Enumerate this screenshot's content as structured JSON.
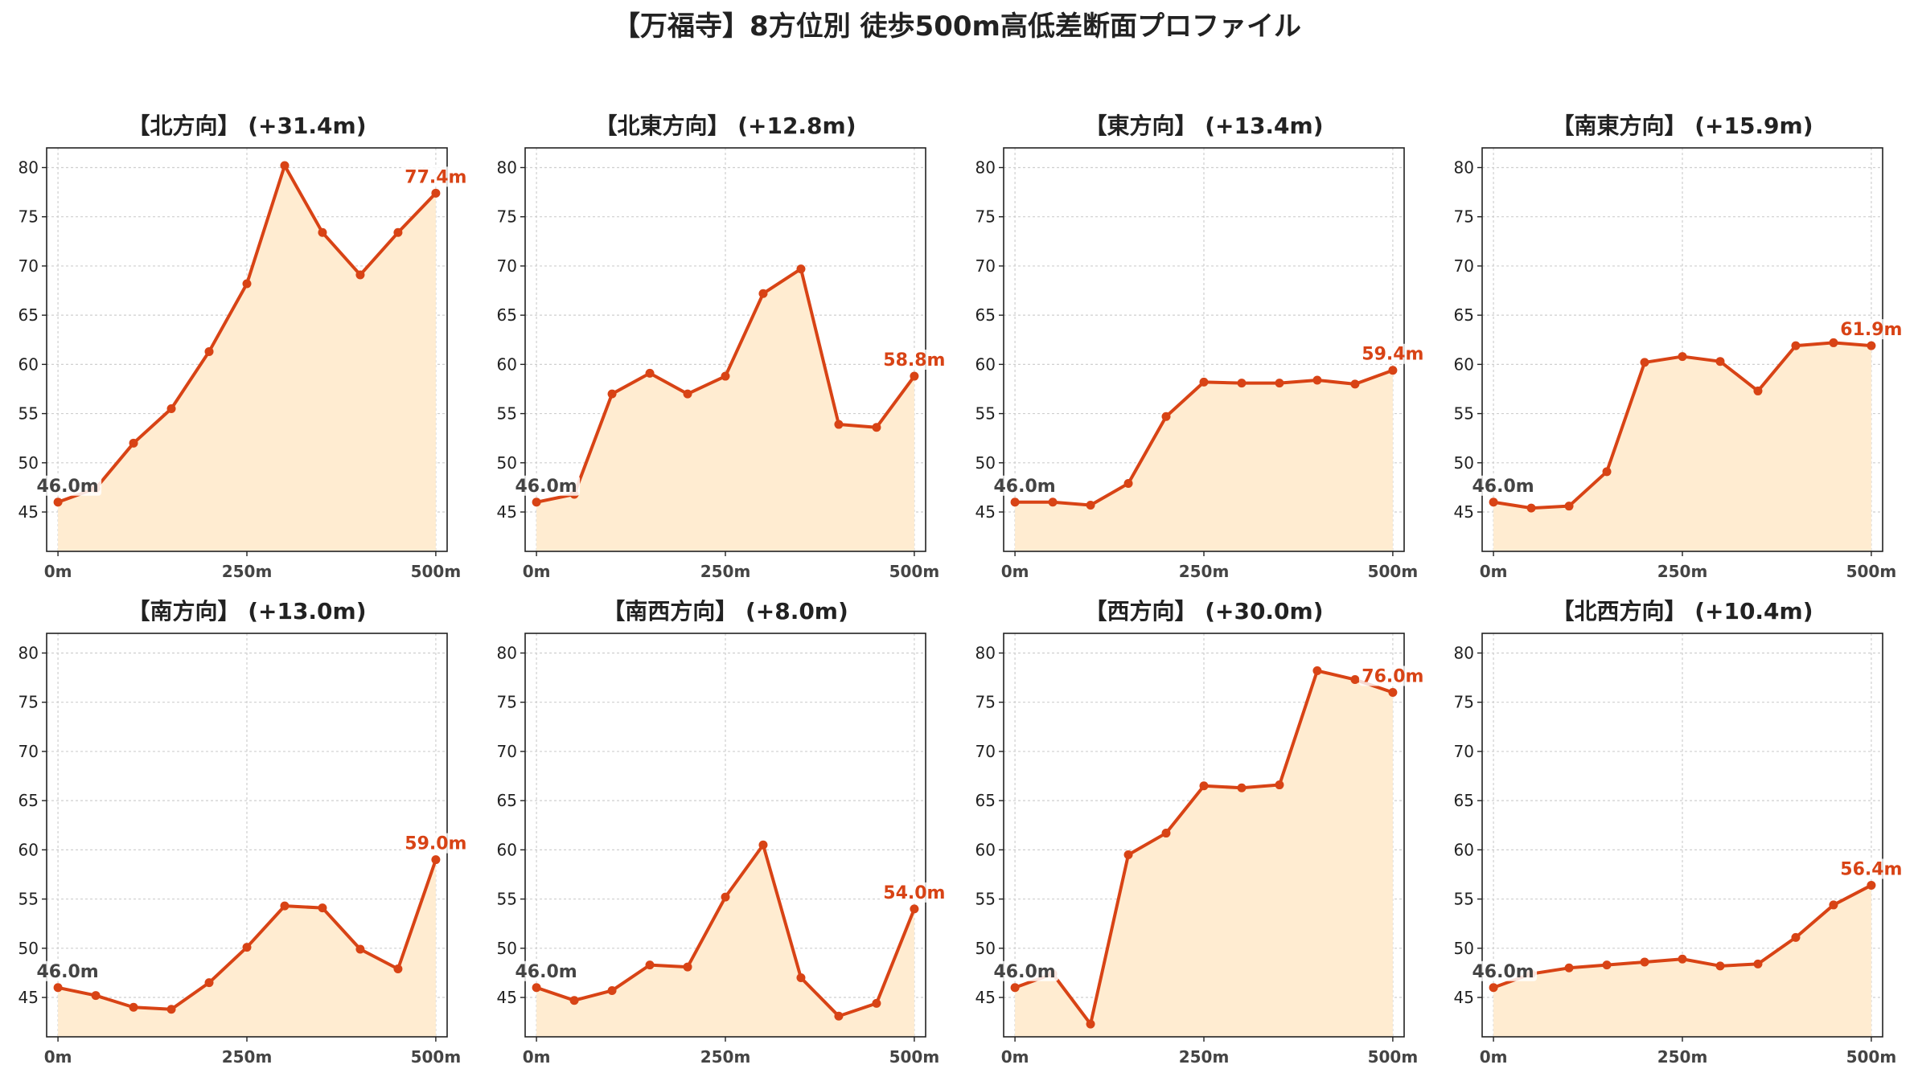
{
  "figure": {
    "title": "【万福寺】8方位別 徒歩500m高低差断面プロファイル"
  },
  "colors": {
    "line": "#d84315",
    "fill": "#ffecd1",
    "grid": "#cfcfcf",
    "start_label": "#444444",
    "end_label": "#d84315"
  },
  "chart_data": [
    {
      "type": "area",
      "title": "【北方向】 (+31.4m)",
      "x": [
        0,
        50,
        100,
        150,
        200,
        250,
        300,
        350,
        400,
        450,
        500
      ],
      "y": [
        46.0,
        47.4,
        52.0,
        55.5,
        61.3,
        68.2,
        80.2,
        73.4,
        69.1,
        73.4,
        77.4
      ],
      "start_label": "46.0m",
      "end_label": "77.4m",
      "ylim": [
        41,
        82
      ],
      "yticks": [
        45,
        50,
        55,
        60,
        65,
        70,
        75,
        80
      ],
      "xticks": [
        0,
        250,
        500
      ],
      "xtick_labels": [
        "0m",
        "250m",
        "500m"
      ],
      "grid": true
    },
    {
      "type": "area",
      "title": "【北東方向】 (+12.8m)",
      "x": [
        0,
        50,
        100,
        150,
        200,
        250,
        300,
        350,
        400,
        450,
        500
      ],
      "y": [
        46.0,
        46.8,
        57.0,
        59.1,
        57.0,
        58.8,
        67.2,
        69.7,
        53.9,
        53.6,
        58.8
      ],
      "start_label": "46.0m",
      "end_label": "58.8m",
      "ylim": [
        41,
        82
      ],
      "yticks": [
        45,
        50,
        55,
        60,
        65,
        70,
        75,
        80
      ],
      "xticks": [
        0,
        250,
        500
      ],
      "xtick_labels": [
        "0m",
        "250m",
        "500m"
      ],
      "grid": true
    },
    {
      "type": "area",
      "title": "【東方向】 (+13.4m)",
      "x": [
        0,
        50,
        100,
        150,
        200,
        250,
        300,
        350,
        400,
        450,
        500
      ],
      "y": [
        46.0,
        46.0,
        45.7,
        47.9,
        54.7,
        58.2,
        58.1,
        58.1,
        58.4,
        58.0,
        59.4
      ],
      "start_label": "46.0m",
      "end_label": "59.4m",
      "ylim": [
        41,
        82
      ],
      "yticks": [
        45,
        50,
        55,
        60,
        65,
        70,
        75,
        80
      ],
      "xticks": [
        0,
        250,
        500
      ],
      "xtick_labels": [
        "0m",
        "250m",
        "500m"
      ],
      "grid": true
    },
    {
      "type": "area",
      "title": "【南東方向】 (+15.9m)",
      "x": [
        0,
        50,
        100,
        150,
        200,
        250,
        300,
        350,
        400,
        450,
        500
      ],
      "y": [
        46.0,
        45.4,
        45.6,
        49.1,
        60.2,
        60.8,
        60.3,
        57.3,
        61.9,
        62.2,
        61.9
      ],
      "start_label": "46.0m",
      "end_label": "61.9m",
      "ylim": [
        41,
        82
      ],
      "yticks": [
        45,
        50,
        55,
        60,
        65,
        70,
        75,
        80
      ],
      "xticks": [
        0,
        250,
        500
      ],
      "xtick_labels": [
        "0m",
        "250m",
        "500m"
      ],
      "grid": true
    },
    {
      "type": "area",
      "title": "【南方向】 (+13.0m)",
      "x": [
        0,
        50,
        100,
        150,
        200,
        250,
        300,
        350,
        400,
        450,
        500
      ],
      "y": [
        46.0,
        45.2,
        44.0,
        43.8,
        46.5,
        50.1,
        54.3,
        54.1,
        49.9,
        47.9,
        59.0
      ],
      "start_label": "46.0m",
      "end_label": "59.0m",
      "ylim": [
        41,
        82
      ],
      "yticks": [
        45,
        50,
        55,
        60,
        65,
        70,
        75,
        80
      ],
      "xticks": [
        0,
        250,
        500
      ],
      "xtick_labels": [
        "0m",
        "250m",
        "500m"
      ],
      "grid": true
    },
    {
      "type": "area",
      "title": "【南西方向】 (+8.0m)",
      "x": [
        0,
        50,
        100,
        150,
        200,
        250,
        300,
        350,
        400,
        450,
        500
      ],
      "y": [
        46.0,
        44.7,
        45.7,
        48.3,
        48.1,
        55.2,
        60.5,
        47.0,
        43.1,
        44.4,
        54.0
      ],
      "start_label": "46.0m",
      "end_label": "54.0m",
      "ylim": [
        41,
        82
      ],
      "yticks": [
        45,
        50,
        55,
        60,
        65,
        70,
        75,
        80
      ],
      "xticks": [
        0,
        250,
        500
      ],
      "xtick_labels": [
        "0m",
        "250m",
        "500m"
      ],
      "grid": true
    },
    {
      "type": "area",
      "title": "【西方向】 (+30.0m)",
      "x": [
        0,
        50,
        100,
        150,
        200,
        250,
        300,
        350,
        400,
        450,
        500
      ],
      "y": [
        46.0,
        47.4,
        42.3,
        59.5,
        61.7,
        66.5,
        66.3,
        66.6,
        78.2,
        77.3,
        76.0
      ],
      "start_label": "46.0m",
      "end_label": "76.0m",
      "ylim": [
        41,
        82
      ],
      "yticks": [
        45,
        50,
        55,
        60,
        65,
        70,
        75,
        80
      ],
      "xticks": [
        0,
        250,
        500
      ],
      "xtick_labels": [
        "0m",
        "250m",
        "500m"
      ],
      "grid": true
    },
    {
      "type": "area",
      "title": "【北西方向】 (+10.4m)",
      "x": [
        0,
        50,
        100,
        150,
        200,
        250,
        300,
        350,
        400,
        450,
        500
      ],
      "y": [
        46.0,
        47.4,
        48.0,
        48.3,
        48.6,
        48.9,
        48.2,
        48.4,
        51.1,
        54.4,
        56.4
      ],
      "start_label": "46.0m",
      "end_label": "56.4m",
      "ylim": [
        41,
        82
      ],
      "yticks": [
        45,
        50,
        55,
        60,
        65,
        70,
        75,
        80
      ],
      "xticks": [
        0,
        250,
        500
      ],
      "xtick_labels": [
        "0m",
        "250m",
        "500m"
      ],
      "grid": true
    }
  ]
}
